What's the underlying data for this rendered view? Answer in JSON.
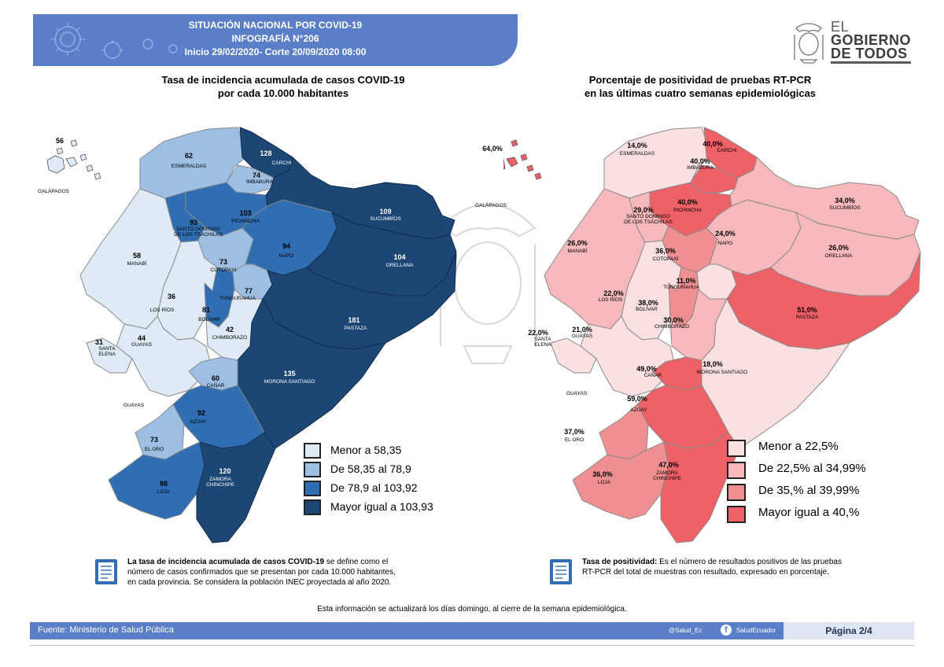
{
  "header": {
    "line1": "SITUACIÓN NACIONAL POR  COVID-19",
    "line2": "INFOGRAFÍA N°206",
    "line3": "Inicio 29/02/2020- Corte 20/09/2020 08:00"
  },
  "logo": {
    "line1": "EL",
    "line2": "GOBIERNO",
    "line3": "DE TODOS",
    "icon": "ecuador-coat-of-arms-icon"
  },
  "map_left": {
    "title1": "Tasa de incidencia acumulada de casos COVID-19",
    "title2": "por cada 10.000 habitantes",
    "colors": {
      "c1": "#deeaf6",
      "c2": "#9dbfe4",
      "c3": "#2f6eb3",
      "c4": "#1c4775"
    },
    "legend": [
      "Menor a 58,35",
      "De 58,35 al 78,9",
      "De 78,9 al 103,92",
      "Mayor igual a 103,93"
    ],
    "provinces": [
      {
        "name": "GALÁPAGOS",
        "value": "56"
      },
      {
        "name": "ESMERALDAS",
        "value": "62"
      },
      {
        "name": "CARCHI",
        "value": "128"
      },
      {
        "name": "IMBABURA",
        "value": "74"
      },
      {
        "name": "PICHINCHA",
        "value": "103"
      },
      {
        "name": "SANTO DOMINGO DE LOS TSÁCHILAS",
        "name1": "SANTO DOMINGO",
        "name2": "DE LOS TSÁCHILAS",
        "value": "93"
      },
      {
        "name": "SUCUMBÍOS",
        "value": "109"
      },
      {
        "name": "MANABÍ",
        "value": "58"
      },
      {
        "name": "COTOPAXI",
        "value": "73"
      },
      {
        "name": "NAPO",
        "value": "94"
      },
      {
        "name": "ORELLANA",
        "value": "104"
      },
      {
        "name": "LOS RÍOS",
        "value": "36"
      },
      {
        "name": "TUNGURAHUA",
        "value": "77"
      },
      {
        "name": "BOLÍVAR",
        "value": "81"
      },
      {
        "name": "PASTAZA",
        "value": "181"
      },
      {
        "name": "GUAYAS",
        "value": "44"
      },
      {
        "name": "SANTA ELENA",
        "name1": "SANTA",
        "name2": "ELENA",
        "value": "31"
      },
      {
        "name": "CHIMBORAZO",
        "value": "42"
      },
      {
        "name": "MORONA SANTIAGO",
        "value": "135"
      },
      {
        "name": "CAÑAR",
        "value": "60"
      },
      {
        "name": "AZUAY",
        "value": "92"
      },
      {
        "name": "EL ORO",
        "value": "73"
      },
      {
        "name": "LOJA",
        "value": "98"
      },
      {
        "name": "ZAMORA CHINCHIPE",
        "name1": "ZAMORA",
        "name2": "CHINCHIPE",
        "value": "120"
      }
    ],
    "guayas_lower": "GUAYAS",
    "note_bold": "La tasa de incidencia acumulada de casos COVID-19",
    "note_rest": " se define como el",
    "note2": "número de casos confirmados que se presentan por cada 10.000 habitantes,",
    "note3": "en cada provincia. Se considera la población INEC proyectada al año 2020."
  },
  "map_right": {
    "title1": "Porcentaje de positividad de pruebas RT-PCR",
    "title2": "en las últimas cuatro semanas epidemiológicas",
    "colors": {
      "c1": "#fbe0e1",
      "c2": "#f7b9bc",
      "c3": "#f08f92",
      "c4": "#ee6166"
    },
    "legend": [
      "Menor a 22,5%",
      "De 22,5% al 34,99%",
      "De 35,% al 39,99%",
      "Mayor igual a 40,%"
    ],
    "provinces": [
      {
        "name": "GALÁPAGOS",
        "value": "64,0%"
      },
      {
        "name": "ESMERALDAS",
        "value": "14,0%"
      },
      {
        "name": "CARCHI",
        "value": "40,0%"
      },
      {
        "name": "IMBABURA",
        "value": "40,0%"
      },
      {
        "name": "PICHINCHA",
        "value": "40,0%"
      },
      {
        "name": "SANTO DOMINGO DE LOS TSÁCHILAS",
        "name1": "SANTO DOMINGO",
        "name2": "DE LOS TSÁCHILAS",
        "value": "29,0%"
      },
      {
        "name": "SUCUMBÍOS",
        "value": "34,0%"
      },
      {
        "name": "MANABÍ",
        "value": "26,0%"
      },
      {
        "name": "NAPO",
        "value": "24,0%"
      },
      {
        "name": "ORELLANA",
        "value": "26,0%"
      },
      {
        "name": "COTOPAXI",
        "value": "36,0%"
      },
      {
        "name": "LOS RÍOS",
        "value": "22,0%"
      },
      {
        "name": "TUNGURAHUA",
        "value": "11,0%"
      },
      {
        "name": "BOLÍVAR",
        "value": "38,0%"
      },
      {
        "name": "PASTAZA",
        "value": "51,0%"
      },
      {
        "name": "SANTA ELENA",
        "name1": "SANTA",
        "name2": "ELENA",
        "value": "22,0%"
      },
      {
        "name": "GUAYAS",
        "value": "21,0%"
      },
      {
        "name": "CHIMBORAZO",
        "value": "30,0%"
      },
      {
        "name": "MORONA SANTIAGO",
        "value": "18,0%"
      },
      {
        "name": "CAÑAR",
        "value": "49,0%"
      },
      {
        "name": "AZUAY",
        "value": "59,0%"
      },
      {
        "name": "EL ORO",
        "value": "37,0%"
      },
      {
        "name": "LOJA",
        "value": "36,0%"
      },
      {
        "name": "ZAMORA CHINCHIPE",
        "name1": "ZAMORA",
        "name2": "CHINCHIPE",
        "value": "47,0%"
      }
    ],
    "guayas_lower": "GUAYAS",
    "note_bold": "Tasa de positividad:",
    "note_rest": "  Es el número de resultados positivos de las pruebas",
    "note2": "RT-PCR del total de muestras con resultado, expresado en porcentaje."
  },
  "update_note": "Esta información se actualizará los días domingo, al cierre de la semana epidemiológica.",
  "footer": {
    "source_label": "Fuente:",
    "source_value": " Ministerio de Salud Pública",
    "twitter": "@Salud_Ec",
    "facebook": "SaludEcuador",
    "page": "Página 2/4"
  }
}
